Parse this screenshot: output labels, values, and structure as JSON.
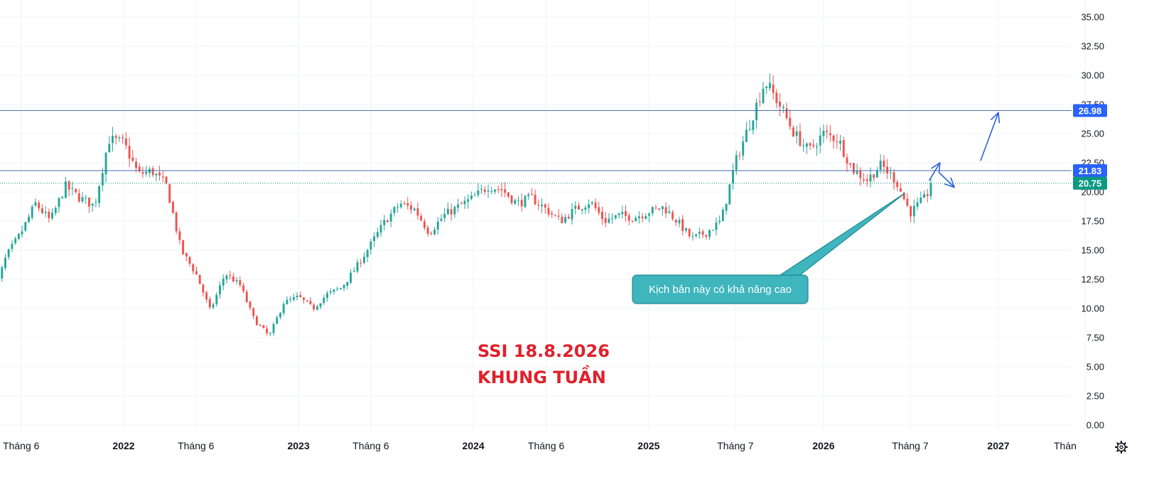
{
  "chart_data": {
    "type": "candlestick",
    "title_lines": [
      "SSI 18.8.2026",
      "KHUNG TUẦN"
    ],
    "colors": {
      "up": "#26a69a",
      "down": "#ef5350",
      "grid": "#f0f3fa",
      "axis_text": "#131722",
      "level_line": "#4a6fa5",
      "title": "#e0202a",
      "callout_fill": "#3fb5bd",
      "callout_border": "#1f8a92",
      "arrow": "#2f62d9",
      "last_price": "#089981",
      "level_badge": "#2962ff"
    },
    "y_axis": {
      "min": 0,
      "max": 35,
      "ticks": [
        "35.00",
        "32.50",
        "30.00",
        "27.50",
        "25.00",
        "22.50",
        "20.00",
        "17.50",
        "15.00",
        "12.50",
        "10.00",
        "7.50",
        "5.00",
        "2.50",
        "0.00"
      ]
    },
    "x_axis": {
      "labels": [
        {
          "text": "Tháng 6",
          "date": "2021-06",
          "bold": false
        },
        {
          "text": "2022",
          "date": "2022-01",
          "bold": true
        },
        {
          "text": "Tháng 6",
          "date": "2022-06",
          "bold": false
        },
        {
          "text": "2023",
          "date": "2023-01",
          "bold": true
        },
        {
          "text": "Tháng 6",
          "date": "2023-06",
          "bold": false
        },
        {
          "text": "2024",
          "date": "2024-01",
          "bold": true
        },
        {
          "text": "Tháng 6",
          "date": "2024-06",
          "bold": false
        },
        {
          "text": "2025",
          "date": "2025-01",
          "bold": true
        },
        {
          "text": "Tháng 7",
          "date": "2025-07",
          "bold": false
        },
        {
          "text": "2026",
          "date": "2026-01",
          "bold": true
        },
        {
          "text": "Tháng 7",
          "date": "2026-07",
          "bold": false
        },
        {
          "text": "2027",
          "date": "2027-01",
          "bold": true
        },
        {
          "text": "Thán",
          "date": "2027-07",
          "bold": false
        }
      ]
    },
    "levels": [
      {
        "value": 26.98,
        "label": "26.98",
        "style": "solid",
        "badge": "level"
      },
      {
        "value": 21.83,
        "label": "21.83",
        "style": "solid",
        "badge": "level"
      },
      {
        "value": 20.75,
        "label": "20.75",
        "style": "dotted",
        "badge": "last"
      }
    ],
    "path": [
      [
        "2021-04-01",
        10.7
      ],
      [
        "2021-05-01",
        14.5
      ],
      [
        "2021-06-01",
        16.5
      ],
      [
        "2021-07-01",
        19.0
      ],
      [
        "2021-08-01",
        17.5
      ],
      [
        "2021-09-01",
        20.5
      ],
      [
        "2021-10-01",
        19.5
      ],
      [
        "2021-11-01",
        18.8
      ],
      [
        "2021-12-01",
        24.5
      ],
      [
        "2022-01-01",
        24.2
      ],
      [
        "2022-02-01",
        21.5
      ],
      [
        "2022-03-01",
        21.8
      ],
      [
        "2022-04-01",
        20.5
      ],
      [
        "2022-05-01",
        15.0
      ],
      [
        "2022-06-01",
        13.0
      ],
      [
        "2022-07-01",
        9.8
      ],
      [
        "2022-08-01",
        13.0
      ],
      [
        "2022-09-01",
        12.0
      ],
      [
        "2022-10-01",
        9.0
      ],
      [
        "2022-11-01",
        7.6
      ],
      [
        "2022-12-01",
        10.5
      ],
      [
        "2023-01-01",
        11.0
      ],
      [
        "2023-02-01",
        10.0
      ],
      [
        "2023-03-01",
        11.2
      ],
      [
        "2023-04-01",
        11.8
      ],
      [
        "2023-05-01",
        13.5
      ],
      [
        "2023-06-01",
        15.5
      ],
      [
        "2023-07-01",
        17.5
      ],
      [
        "2023-08-01",
        19.0
      ],
      [
        "2023-09-01",
        18.5
      ],
      [
        "2023-10-01",
        16.5
      ],
      [
        "2023-11-01",
        18.0
      ],
      [
        "2024-01-01",
        19.5
      ],
      [
        "2024-02-01",
        20.5
      ],
      [
        "2024-03-01",
        20.2
      ],
      [
        "2024-04-01",
        19.0
      ],
      [
        "2024-05-01",
        19.5
      ],
      [
        "2024-06-01",
        18.5
      ],
      [
        "2024-07-01",
        17.5
      ],
      [
        "2024-08-01",
        18.5
      ],
      [
        "2024-09-01",
        19.2
      ],
      [
        "2024-10-01",
        17.5
      ],
      [
        "2024-11-01",
        18.0
      ],
      [
        "2024-12-01",
        17.8
      ],
      [
        "2025-01-01",
        18.3
      ],
      [
        "2025-02-01",
        18.7
      ],
      [
        "2025-03-01",
        17.5
      ],
      [
        "2025-04-01",
        16.0
      ],
      [
        "2025-05-01",
        16.5
      ],
      [
        "2025-06-01",
        17.5
      ],
      [
        "2025-07-01",
        22.5
      ],
      [
        "2025-08-01",
        26.0
      ],
      [
        "2025-09-01",
        29.5
      ],
      [
        "2025-10-01",
        27.5
      ],
      [
        "2025-11-01",
        25.0
      ],
      [
        "2025-12-01",
        23.5
      ],
      [
        "2026-01-01",
        25.0
      ],
      [
        "2026-02-01",
        24.5
      ],
      [
        "2026-03-01",
        22.0
      ],
      [
        "2026-04-01",
        21.0
      ],
      [
        "2026-05-01",
        22.3
      ],
      [
        "2026-06-01",
        21.0
      ],
      [
        "2026-07-01",
        18.2
      ],
      [
        "2026-08-01",
        19.5
      ],
      [
        "2026-08-18",
        20.75
      ]
    ],
    "arrows": [
      {
        "from": [
          "2026-08-10",
          21.0
        ],
        "to": [
          "2026-09-01",
          22.5
        ]
      },
      {
        "from": [
          "2026-09-01",
          21.6
        ],
        "to": [
          "2026-10-01",
          20.4
        ]
      },
      {
        "from": [
          "2026-11-25",
          22.7
        ],
        "to": [
          "2027-01-01",
          26.8
        ]
      }
    ],
    "callout": {
      "text": "Kịch bản này có khả năng cao",
      "pointer_to": [
        "2026-06-20",
        19.9
      ]
    }
  }
}
